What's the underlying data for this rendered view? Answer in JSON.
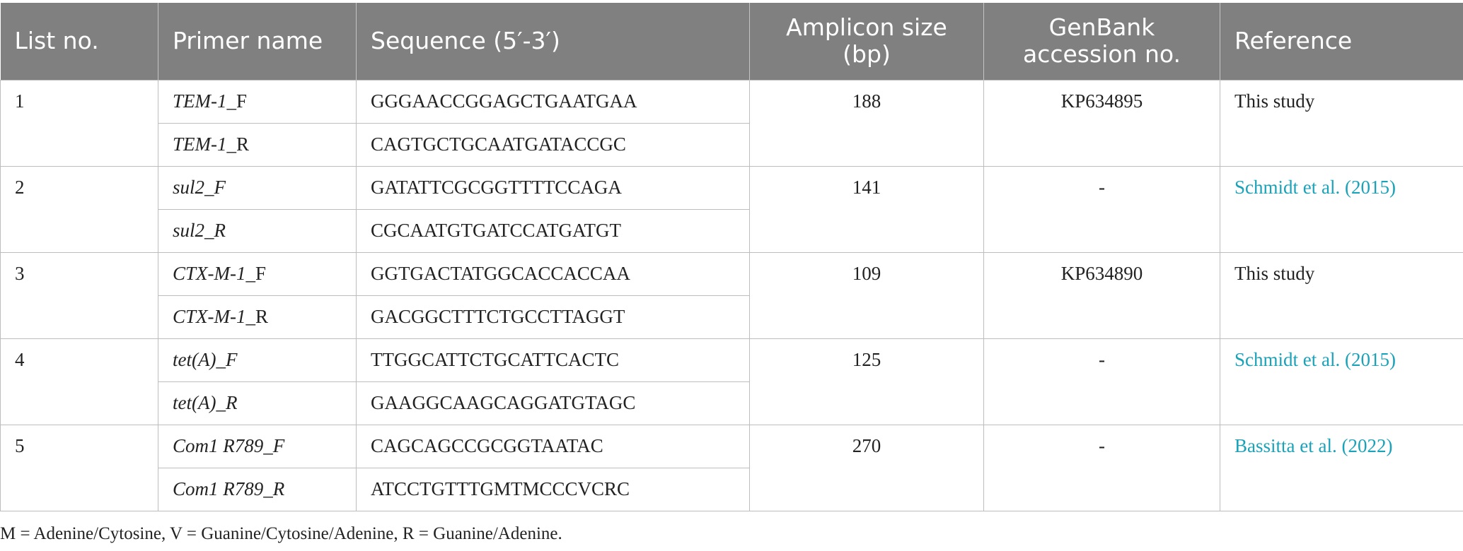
{
  "headers": [
    "List no.",
    "Primer name",
    "Sequence (5′-3′)",
    "Amplicon size (bp)",
    "GenBank accession no.",
    "Reference"
  ],
  "header_lines": {
    "amplicon": [
      "Amplicon size",
      "(bp)"
    ],
    "genbank": [
      "GenBank",
      "accession no."
    ]
  },
  "rows": [
    {
      "list_no": "1",
      "primers": [
        {
          "gene": "TEM-1",
          "suffix": "_F",
          "suffix_italic": false,
          "sequence": "GGGAACCGGAGCTGAATGAA"
        },
        {
          "gene": "TEM-1",
          "suffix": "_R",
          "suffix_italic": false,
          "sequence": "CAGTGCTGCAATGATACCGC"
        }
      ],
      "amplicon": "188",
      "genbank": "KP634895",
      "reference": "This study",
      "reference_link": false
    },
    {
      "list_no": "2",
      "primers": [
        {
          "gene": "sul2",
          "suffix": "_F",
          "suffix_italic": true,
          "sequence": "GATATTCGCGGTTTTCCAGA"
        },
        {
          "gene": "sul2",
          "suffix": "_R",
          "suffix_italic": true,
          "sequence": "CGCAATGTGATCCATGATGT"
        }
      ],
      "amplicon": "141",
      "genbank": "-",
      "reference": "Schmidt et al. (2015)",
      "reference_link": true
    },
    {
      "list_no": "3",
      "primers": [
        {
          "gene": "CTX-M-1",
          "suffix": "_F",
          "suffix_italic": false,
          "sequence": "GGTGACTATGGCACCACCAA"
        },
        {
          "gene": "CTX-M-1",
          "suffix": "_R",
          "suffix_italic": false,
          "sequence": "GACGGCTTTCTGCCTTAGGT"
        }
      ],
      "amplicon": "109",
      "genbank": "KP634890",
      "reference": "This study",
      "reference_link": false
    },
    {
      "list_no": "4",
      "primers": [
        {
          "gene": "tet(A)",
          "suffix": "_F",
          "suffix_italic": true,
          "sequence": "TTGGCATTCTGCATTCACTC"
        },
        {
          "gene": "tet(A)",
          "suffix": "_R",
          "suffix_italic": true,
          "sequence": "GAAGGCAAGCAGGATGTAGC"
        }
      ],
      "amplicon": "125",
      "genbank": "-",
      "reference": "Schmidt et al. (2015)",
      "reference_link": true
    },
    {
      "list_no": "5",
      "primers": [
        {
          "gene": "Com1 R789",
          "suffix": "_F",
          "suffix_italic": true,
          "sequence": "CAGCAGCCGCGGTAATAC"
        },
        {
          "gene": "Com1 R789",
          "suffix": "_R",
          "suffix_italic": true,
          "sequence": "ATCCTGTTTGMTMCCCVCRC"
        }
      ],
      "amplicon": "270",
      "genbank": "-",
      "reference": "Bassitta et al. (2022)",
      "reference_link": true
    }
  ],
  "footnote": "M = Adenine/Cytosine, V = Guanine/Cytosine/Adenine, R = Guanine/Adenine.",
  "colors": {
    "header_bg": "#808080",
    "header_text": "#ffffff",
    "link": "#1aa2b8",
    "border": "#bdbdbd"
  }
}
